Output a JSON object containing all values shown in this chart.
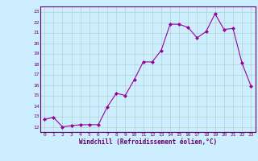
{
  "x": [
    0,
    1,
    2,
    3,
    4,
    5,
    6,
    7,
    8,
    9,
    10,
    11,
    12,
    13,
    14,
    15,
    16,
    17,
    18,
    19,
    20,
    21,
    22,
    23
  ],
  "y": [
    12.7,
    12.9,
    12.0,
    12.1,
    12.2,
    12.2,
    12.2,
    13.9,
    15.2,
    15.0,
    16.5,
    18.2,
    18.2,
    19.3,
    21.8,
    21.8,
    21.5,
    20.5,
    21.1,
    22.8,
    21.3,
    21.4,
    18.1,
    15.9
  ],
  "line_color": "#990099",
  "marker": "D",
  "marker_size": 2,
  "bg_color": "#cceeff",
  "grid_color": "#aaccbb",
  "xlabel": "Windchill (Refroidissement éolien,°C)",
  "xlabel_color": "#660066",
  "ylim": [
    11.5,
    23.5
  ],
  "xlim": [
    -0.5,
    23.5
  ],
  "yticks": [
    12,
    13,
    14,
    15,
    16,
    17,
    18,
    19,
    20,
    21,
    22,
    23
  ],
  "xticks": [
    0,
    1,
    2,
    3,
    4,
    5,
    6,
    7,
    8,
    9,
    10,
    11,
    12,
    13,
    14,
    15,
    16,
    17,
    18,
    19,
    20,
    21,
    22,
    23
  ],
  "tick_label_color": "#660066",
  "spine_color": "#660066"
}
